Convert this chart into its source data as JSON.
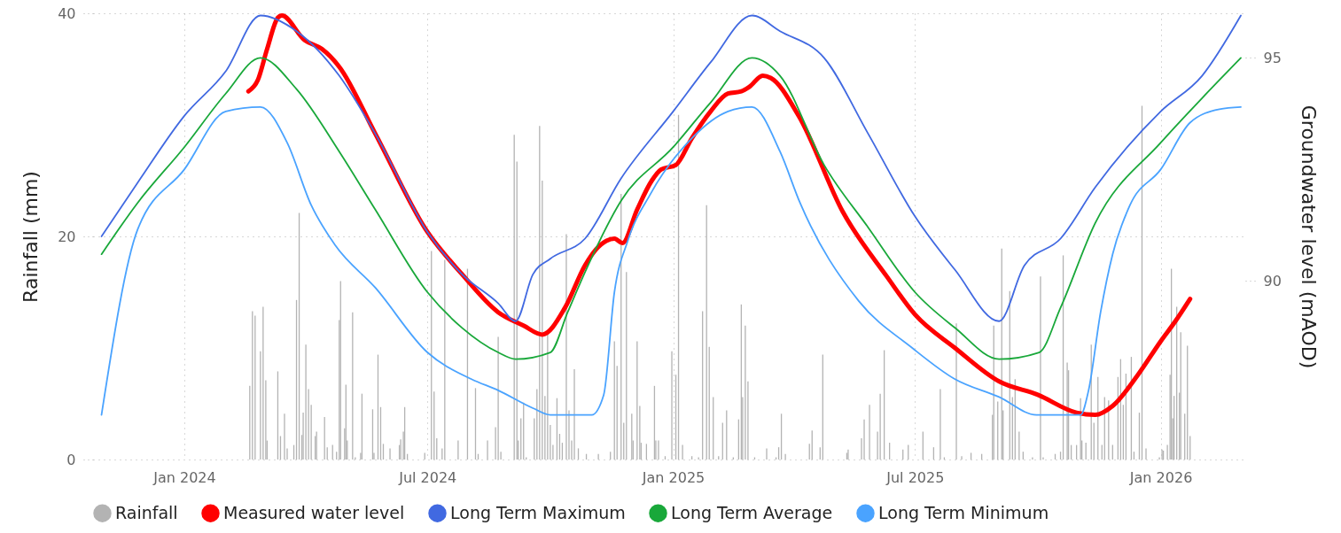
{
  "chart_data": {
    "type": "line",
    "ylabel": "Rainfall (mm)",
    "y2label": "Groundwater level (mAOD)",
    "xlim": [
      "2023-10-28",
      "2026-03-02"
    ],
    "xticks": [
      {
        "value": "2024-01-01",
        "label": "Jan 2024"
      },
      {
        "value": "2024-07-01",
        "label": "Jul 2024"
      },
      {
        "value": "2025-01-01",
        "label": "Jan 2025"
      },
      {
        "value": "2025-07-01",
        "label": "Jul 2025"
      },
      {
        "value": "2026-01-01",
        "label": "Jan 2026"
      }
    ],
    "ylim": [
      0,
      40
    ],
    "yticks": [
      0,
      20,
      40
    ],
    "y2lim": [
      86,
      96
    ],
    "y2ticks": [
      90,
      95
    ],
    "grid": true,
    "legend": "bottom",
    "series": [
      {
        "name": "Rainfall",
        "type": "bar",
        "color": "#b3b3b3",
        "x": [
          "2024-02-19",
          "2024-02-21",
          "2024-02-23",
          "2024-02-27",
          "2024-02-29",
          "2024-03-02",
          "2024-03-03",
          "2024-03-11",
          "2024-03-13",
          "2024-03-16",
          "2024-03-18",
          "2024-03-23",
          "2024-03-25",
          "2024-03-27",
          "2024-03-29",
          "2024-03-30",
          "2024-04-01",
          "2024-04-03",
          "2024-04-05",
          "2024-04-08",
          "2024-04-09",
          "2024-04-15",
          "2024-04-17",
          "2024-04-21",
          "2024-04-24",
          "2024-04-26",
          "2024-04-27",
          "2024-04-30",
          "2024-05-01",
          "2024-05-02",
          "2024-05-06",
          "2024-05-08",
          "2024-05-12",
          "2024-05-13",
          "2024-05-21",
          "2024-05-22",
          "2024-05-25",
          "2024-05-27",
          "2024-05-29",
          "2024-06-03",
          "2024-06-10",
          "2024-06-11",
          "2024-06-13",
          "2024-06-14",
          "2024-06-16",
          "2024-06-29",
          "2024-07-04",
          "2024-07-06",
          "2024-07-08",
          "2024-07-12",
          "2024-07-14",
          "2024-07-24",
          "2024-07-31",
          "2024-08-06",
          "2024-08-08",
          "2024-08-15",
          "2024-08-21",
          "2024-08-23",
          "2024-08-25",
          "2024-09-04",
          "2024-09-06",
          "2024-09-07",
          "2024-09-09",
          "2024-09-11",
          "2024-09-13",
          "2024-09-19",
          "2024-09-21",
          "2024-09-23",
          "2024-09-25",
          "2024-09-27",
          "2024-09-29",
          "2024-10-01",
          "2024-10-03",
          "2024-10-06",
          "2024-10-08",
          "2024-10-10",
          "2024-10-13",
          "2024-10-15",
          "2024-10-17",
          "2024-10-19",
          "2024-10-22",
          "2024-10-28",
          "2024-11-06",
          "2024-11-15",
          "2024-11-18",
          "2024-11-20",
          "2024-11-23",
          "2024-11-25",
          "2024-11-27",
          "2024-12-01",
          "2024-12-02",
          "2024-12-05",
          "2024-12-07",
          "2024-12-08",
          "2024-12-12",
          "2024-12-18",
          "2024-12-19",
          "2024-12-21",
          "2024-12-26",
          "2024-12-31",
          "2025-01-03",
          "2025-01-05",
          "2025-01-08",
          "2025-01-15",
          "2025-01-20",
          "2025-01-23",
          "2025-01-26",
          "2025-01-28",
          "2025-01-31",
          "2025-02-04",
          "2025-02-07",
          "2025-02-10",
          "2025-02-15",
          "2025-02-19",
          "2025-02-21",
          "2025-02-22",
          "2025-02-24",
          "2025-02-26",
          "2025-03-03",
          "2025-03-12",
          "2025-03-19",
          "2025-03-21",
          "2025-03-23",
          "2025-03-26",
          "2025-04-13",
          "2025-04-15",
          "2025-04-21",
          "2025-04-23",
          "2025-05-11",
          "2025-05-12",
          "2025-05-22",
          "2025-05-24",
          "2025-05-28",
          "2025-06-03",
          "2025-06-05",
          "2025-06-08",
          "2025-06-12",
          "2025-06-22",
          "2025-06-26",
          "2025-07-07",
          "2025-07-15",
          "2025-07-20",
          "2025-07-23",
          "2025-08-01",
          "2025-08-05",
          "2025-08-12",
          "2025-08-20",
          "2025-08-28",
          "2025-08-29",
          "2025-09-01",
          "2025-09-04",
          "2025-09-05",
          "2025-09-10",
          "2025-09-12",
          "2025-09-14",
          "2025-09-17",
          "2025-09-20",
          "2025-09-27",
          "2025-10-03",
          "2025-10-05",
          "2025-10-14",
          "2025-10-18",
          "2025-10-20",
          "2025-10-23",
          "2025-10-24",
          "2025-10-26",
          "2025-10-30",
          "2025-11-02",
          "2025-11-03",
          "2025-11-06",
          "2025-11-10",
          "2025-11-12",
          "2025-11-15",
          "2025-11-18",
          "2025-11-20",
          "2025-11-23",
          "2025-11-26",
          "2025-11-30",
          "2025-12-02",
          "2025-12-04",
          "2025-12-06",
          "2025-12-10",
          "2025-12-12",
          "2025-12-16",
          "2025-12-18",
          "2025-12-21",
          "2025-12-31",
          "2026-01-02",
          "2026-01-03",
          "2026-01-06",
          "2026-01-08",
          "2026-01-09",
          "2026-01-10",
          "2026-01-11",
          "2026-01-13",
          "2026-01-15",
          "2026-01-16",
          "2026-01-19",
          "2026-01-21",
          "2026-01-23"
        ],
        "values": [
          6.6,
          13.3,
          12.9,
          9.7,
          13.7,
          7.1,
          1.7,
          7.9,
          2.1,
          4.1,
          1.0,
          1.3,
          14.3,
          22.1,
          2.2,
          4.2,
          10.3,
          6.3,
          4.9,
          2.1,
          2.5,
          3.8,
          1.1,
          1.3,
          0.7,
          12.5,
          16.0,
          2.8,
          6.7,
          1.7,
          13.2,
          0.2,
          0.6,
          5.9,
          4.5,
          0.6,
          9.4,
          4.7,
          1.4,
          1.0,
          1.3,
          1.8,
          2.5,
          4.7,
          0.5,
          0.6,
          18.7,
          6.1,
          1.9,
          1.0,
          17.9,
          1.7,
          17.1,
          6.4,
          0.5,
          1.7,
          2.9,
          11.0,
          0.7,
          29.1,
          26.7,
          1.7,
          3.7,
          5.1,
          0.2,
          3.7,
          6.3,
          29.9,
          25.0,
          5.7,
          11.2,
          3.1,
          1.3,
          5.5,
          2.3,
          1.5,
          20.2,
          4.4,
          1.7,
          8.1,
          1.0,
          0.5,
          0.5,
          0.7,
          10.6,
          8.4,
          23.8,
          3.3,
          16.8,
          4.1,
          1.7,
          10.6,
          4.8,
          1.5,
          1.4,
          6.6,
          1.7,
          1.7,
          0.3,
          9.7,
          7.6,
          30.9,
          1.3,
          0.3,
          0.2,
          13.3,
          22.8,
          10.1,
          5.6,
          0.3,
          3.3,
          4.4,
          0.2,
          3.6,
          13.9,
          5.6,
          12.0,
          7.0,
          0.2,
          1.0,
          0.2,
          1.1,
          4.1,
          0.5,
          1.4,
          2.6,
          1.1,
          9.4,
          0.6,
          0.9,
          1.9,
          3.6,
          4.9,
          2.5,
          5.9,
          9.8,
          1.5,
          0.9,
          1.3,
          2.5,
          1.1,
          6.3,
          0.2,
          12.2,
          0.3,
          0.6,
          0.5,
          4.0,
          12.0,
          5.2,
          18.9,
          4.4,
          15.1,
          5.6,
          7.2,
          2.5,
          0.7,
          0.2,
          16.4,
          0.2,
          0.5,
          0.7,
          18.3,
          8.7,
          8.0,
          1.3,
          1.3,
          5.5,
          1.7,
          1.5,
          10.3,
          3.3,
          7.4,
          1.3,
          5.6,
          5.3,
          1.3,
          7.4,
          9.0,
          4.9,
          7.7,
          9.2,
          0.7,
          4.2,
          31.7,
          1.0,
          0.2,
          0.9,
          0.8,
          1.3,
          7.6,
          17.1,
          3.7,
          5.7,
          13.7,
          6.0,
          11.4,
          4.1,
          10.2,
          2.1
        ]
      },
      {
        "name": "Measured water level",
        "axis": "y2",
        "color": "#ff0000",
        "x": [
          "2024-02-18",
          "2024-02-25",
          "2024-03-03",
          "2024-03-11",
          "2024-03-14",
          "2024-03-31",
          "2024-04-13",
          "2024-04-26",
          "2024-05-23",
          "2024-07-01",
          "2024-07-27",
          "2024-08-23",
          "2024-09-11",
          "2024-09-25",
          "2024-10-12",
          "2024-10-27",
          "2024-11-04",
          "2024-11-12",
          "2024-11-18",
          "2024-11-24",
          "2024-12-05",
          "2024-12-16",
          "2024-12-23",
          "2025-01-03",
          "2025-01-15",
          "2025-01-29",
          "2025-02-11",
          "2025-02-21",
          "2025-02-27",
          "2025-03-09",
          "2025-03-15",
          "2025-04-05",
          "2025-05-08",
          "2025-06-10",
          "2025-07-01",
          "2025-07-31",
          "2025-09-02",
          "2025-10-01",
          "2025-10-30",
          "2025-11-13",
          "2025-11-26",
          "2025-12-15",
          "2026-01-01",
          "2026-01-12",
          "2026-01-23"
        ],
        "values": [
          94.25,
          94.5,
          95.2,
          95.9,
          95.95,
          95.4,
          95.2,
          94.8,
          93.3,
          91.1,
          90.15,
          89.3,
          89.0,
          88.8,
          89.4,
          90.35,
          90.7,
          90.9,
          90.95,
          90.85,
          91.6,
          92.25,
          92.5,
          92.6,
          93.2,
          93.8,
          94.2,
          94.25,
          94.35,
          94.6,
          94.55,
          93.7,
          91.55,
          90.1,
          89.25,
          88.5,
          87.75,
          87.45,
          87.05,
          87.0,
          87.2,
          87.9,
          88.65,
          89.1,
          89.6
        ]
      },
      {
        "name": "Long Term Maximum",
        "axis": "y2",
        "color": "#4169e1",
        "x": [
          "2023-10-31",
          "2023-11-27",
          "2024-01-01",
          "2024-02-01",
          "2024-02-27",
          "2024-03-25",
          "2024-04-26",
          "2024-05-23",
          "2024-07-01",
          "2024-07-27",
          "2024-08-23",
          "2024-09-05",
          "2024-09-18",
          "2024-10-01",
          "2024-10-27",
          "2024-11-23",
          "2025-01-01",
          "2025-01-29",
          "2025-03-01",
          "2025-03-22",
          "2025-04-24",
          "2025-05-27",
          "2025-07-01",
          "2025-07-31",
          "2025-09-02",
          "2025-09-21",
          "2025-10-18",
          "2025-11-13",
          "2026-01-01",
          "2026-02-01",
          "2026-03-02"
        ],
        "values": [
          91.0,
          92.2,
          93.7,
          94.7,
          95.95,
          95.6,
          94.6,
          93.3,
          91.1,
          90.15,
          89.5,
          89.1,
          90.15,
          90.5,
          90.95,
          92.3,
          93.8,
          94.9,
          95.95,
          95.6,
          95.0,
          93.3,
          91.45,
          90.25,
          89.1,
          90.35,
          90.95,
          92.1,
          93.8,
          94.6,
          95.95
        ]
      },
      {
        "name": "Long Term Average",
        "axis": "y2",
        "color": "#19a83a",
        "x": [
          "2023-10-31",
          "2023-11-27",
          "2024-01-01",
          "2024-02-01",
          "2024-02-27",
          "2024-03-25",
          "2024-04-26",
          "2024-05-23",
          "2024-07-01",
          "2024-07-27",
          "2024-08-23",
          "2024-09-05",
          "2024-10-01",
          "2024-10-14",
          "2024-10-27",
          "2024-11-23",
          "2025-01-01",
          "2025-01-29",
          "2025-03-01",
          "2025-03-22",
          "2025-04-24",
          "2025-05-27",
          "2025-07-01",
          "2025-07-31",
          "2025-09-02",
          "2025-10-02",
          "2025-10-18",
          "2025-11-13",
          "2026-01-01",
          "2026-02-01",
          "2026-03-02"
        ],
        "values": [
          90.6,
          91.75,
          93.0,
          94.2,
          95.0,
          94.3,
          92.9,
          91.6,
          89.75,
          88.95,
          88.4,
          88.25,
          88.4,
          89.3,
          90.2,
          91.8,
          93.0,
          94.0,
          95.0,
          94.6,
          92.6,
          91.2,
          89.75,
          88.95,
          88.25,
          88.4,
          89.4,
          91.3,
          93.1,
          94.1,
          95.0
        ]
      },
      {
        "name": "Long Term Minimum",
        "axis": "y2",
        "color": "#4aa3ff",
        "x": [
          "2023-10-31",
          "2023-11-27",
          "2024-01-01",
          "2024-02-01",
          "2024-02-27",
          "2024-03-18",
          "2024-04-05",
          "2024-04-23",
          "2024-05-23",
          "2024-07-01",
          "2024-08-03",
          "2024-08-23",
          "2024-09-18",
          "2024-10-01",
          "2024-11-01",
          "2024-11-10",
          "2024-11-18",
          "2024-11-28",
          "2024-12-15",
          "2025-01-15",
          "2025-02-11",
          "2025-03-01",
          "2025-03-22",
          "2025-04-06",
          "2025-05-20",
          "2025-06-29",
          "2025-07-31",
          "2025-09-02",
          "2025-09-30",
          "2025-11-02",
          "2025-11-08",
          "2025-11-17",
          "2025-11-26",
          "2025-12-09",
          "2026-01-01",
          "2026-01-23",
          "2026-02-14",
          "2026-03-02"
        ],
        "values": [
          87.0,
          91.15,
          92.5,
          93.8,
          93.9,
          93.1,
          91.7,
          90.8,
          89.85,
          88.4,
          87.8,
          87.55,
          87.15,
          87.0,
          87.0,
          87.45,
          89.75,
          90.9,
          91.95,
          93.2,
          93.8,
          93.9,
          92.9,
          91.75,
          89.55,
          88.5,
          87.8,
          87.4,
          87.0,
          87.0,
          87.55,
          89.3,
          90.6,
          91.7,
          92.5,
          93.55,
          93.85,
          93.9
        ]
      }
    ]
  }
}
